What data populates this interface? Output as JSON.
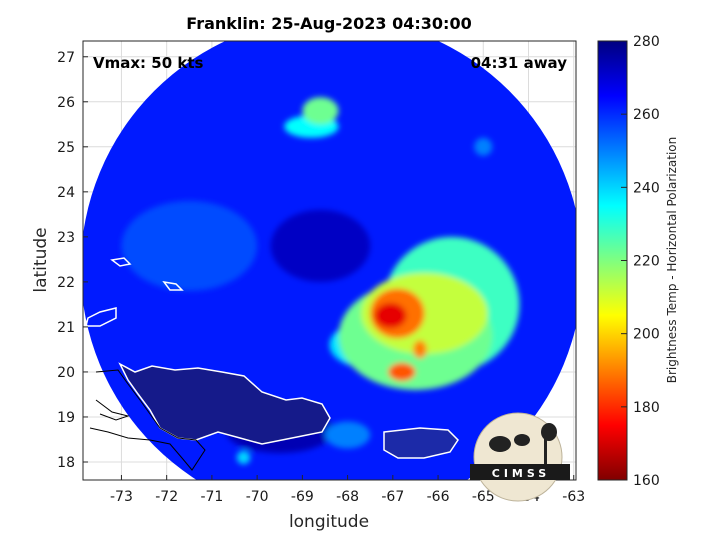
{
  "chart_data": {
    "type": "heatmap",
    "title": "Franklin: 25-Aug-2023 04:30:00",
    "xlabel": "longitude",
    "ylabel": "latitude",
    "xlim": [
      -73.85,
      -62.95
    ],
    "ylim": [
      17.6,
      27.35
    ],
    "xticks": [
      -73,
      -72,
      -71,
      -70,
      -69,
      -68,
      -67,
      -66,
      -65,
      -64,
      -63
    ],
    "yticks": [
      18,
      19,
      20,
      21,
      22,
      23,
      24,
      25,
      26,
      27
    ],
    "grid": true,
    "annotations": {
      "vmax": "Vmax: 50 kts",
      "away": "04:31 away"
    },
    "colorbar": {
      "label": "Brightness Temp - Horizontal Polarization",
      "range": [
        160,
        280
      ],
      "ticks": [
        160,
        180,
        200,
        220,
        240,
        260,
        280
      ],
      "colormap": "jet"
    },
    "swath_center": [
      -68.35,
      22.3
    ],
    "swath_radius_deg": 5.55,
    "background_tb": 262,
    "features": [
      {
        "lon": -67.05,
        "lat": 21.25,
        "tb": 172,
        "rx": 0.35,
        "ry": 0.28
      },
      {
        "lon": -66.9,
        "lat": 21.3,
        "tb": 188,
        "rx": 0.6,
        "ry": 0.55
      },
      {
        "lon": -66.4,
        "lat": 20.5,
        "tb": 190,
        "rx": 0.15,
        "ry": 0.2
      },
      {
        "lon": -66.8,
        "lat": 20.0,
        "tb": 185,
        "rx": 0.3,
        "ry": 0.2
      },
      {
        "lon": -66.3,
        "lat": 21.3,
        "tb": 212,
        "rx": 1.4,
        "ry": 0.9
      },
      {
        "lon": -66.5,
        "lat": 20.8,
        "tb": 222,
        "rx": 1.7,
        "ry": 1.2
      },
      {
        "lon": -65.7,
        "lat": 21.5,
        "tb": 228,
        "rx": 1.5,
        "ry": 1.5
      },
      {
        "lon": -67.6,
        "lat": 20.6,
        "tb": 238,
        "rx": 0.8,
        "ry": 0.5
      },
      {
        "lon": -68.6,
        "lat": 25.8,
        "tb": 222,
        "rx": 0.4,
        "ry": 0.3
      },
      {
        "lon": -68.8,
        "lat": 25.45,
        "tb": 235,
        "rx": 0.6,
        "ry": 0.25
      },
      {
        "lon": -69.9,
        "lat": 19.0,
        "tb": 240,
        "rx": 0.4,
        "ry": 0.35
      },
      {
        "lon": -70.3,
        "lat": 18.1,
        "tb": 240,
        "rx": 0.15,
        "ry": 0.15
      },
      {
        "lon": -68.0,
        "lat": 18.6,
        "tb": 250,
        "rx": 0.5,
        "ry": 0.3
      },
      {
        "lon": -65.0,
        "lat": 25.0,
        "tb": 250,
        "rx": 0.2,
        "ry": 0.2
      },
      {
        "lon": -71.5,
        "lat": 22.8,
        "tb": 256,
        "rx": 1.5,
        "ry": 1.0
      },
      {
        "lon": -68.6,
        "lat": 22.8,
        "tb": 272,
        "rx": 1.1,
        "ry": 0.8
      },
      {
        "lon": -69.5,
        "lat": 18.7,
        "tb": 274,
        "rx": 1.2,
        "ry": 0.5
      },
      {
        "lon": -64.3,
        "lat": 18.2,
        "tb": 274,
        "rx": 0.8,
        "ry": 0.25
      }
    ]
  },
  "logo": {
    "text": "CIMSS"
  }
}
